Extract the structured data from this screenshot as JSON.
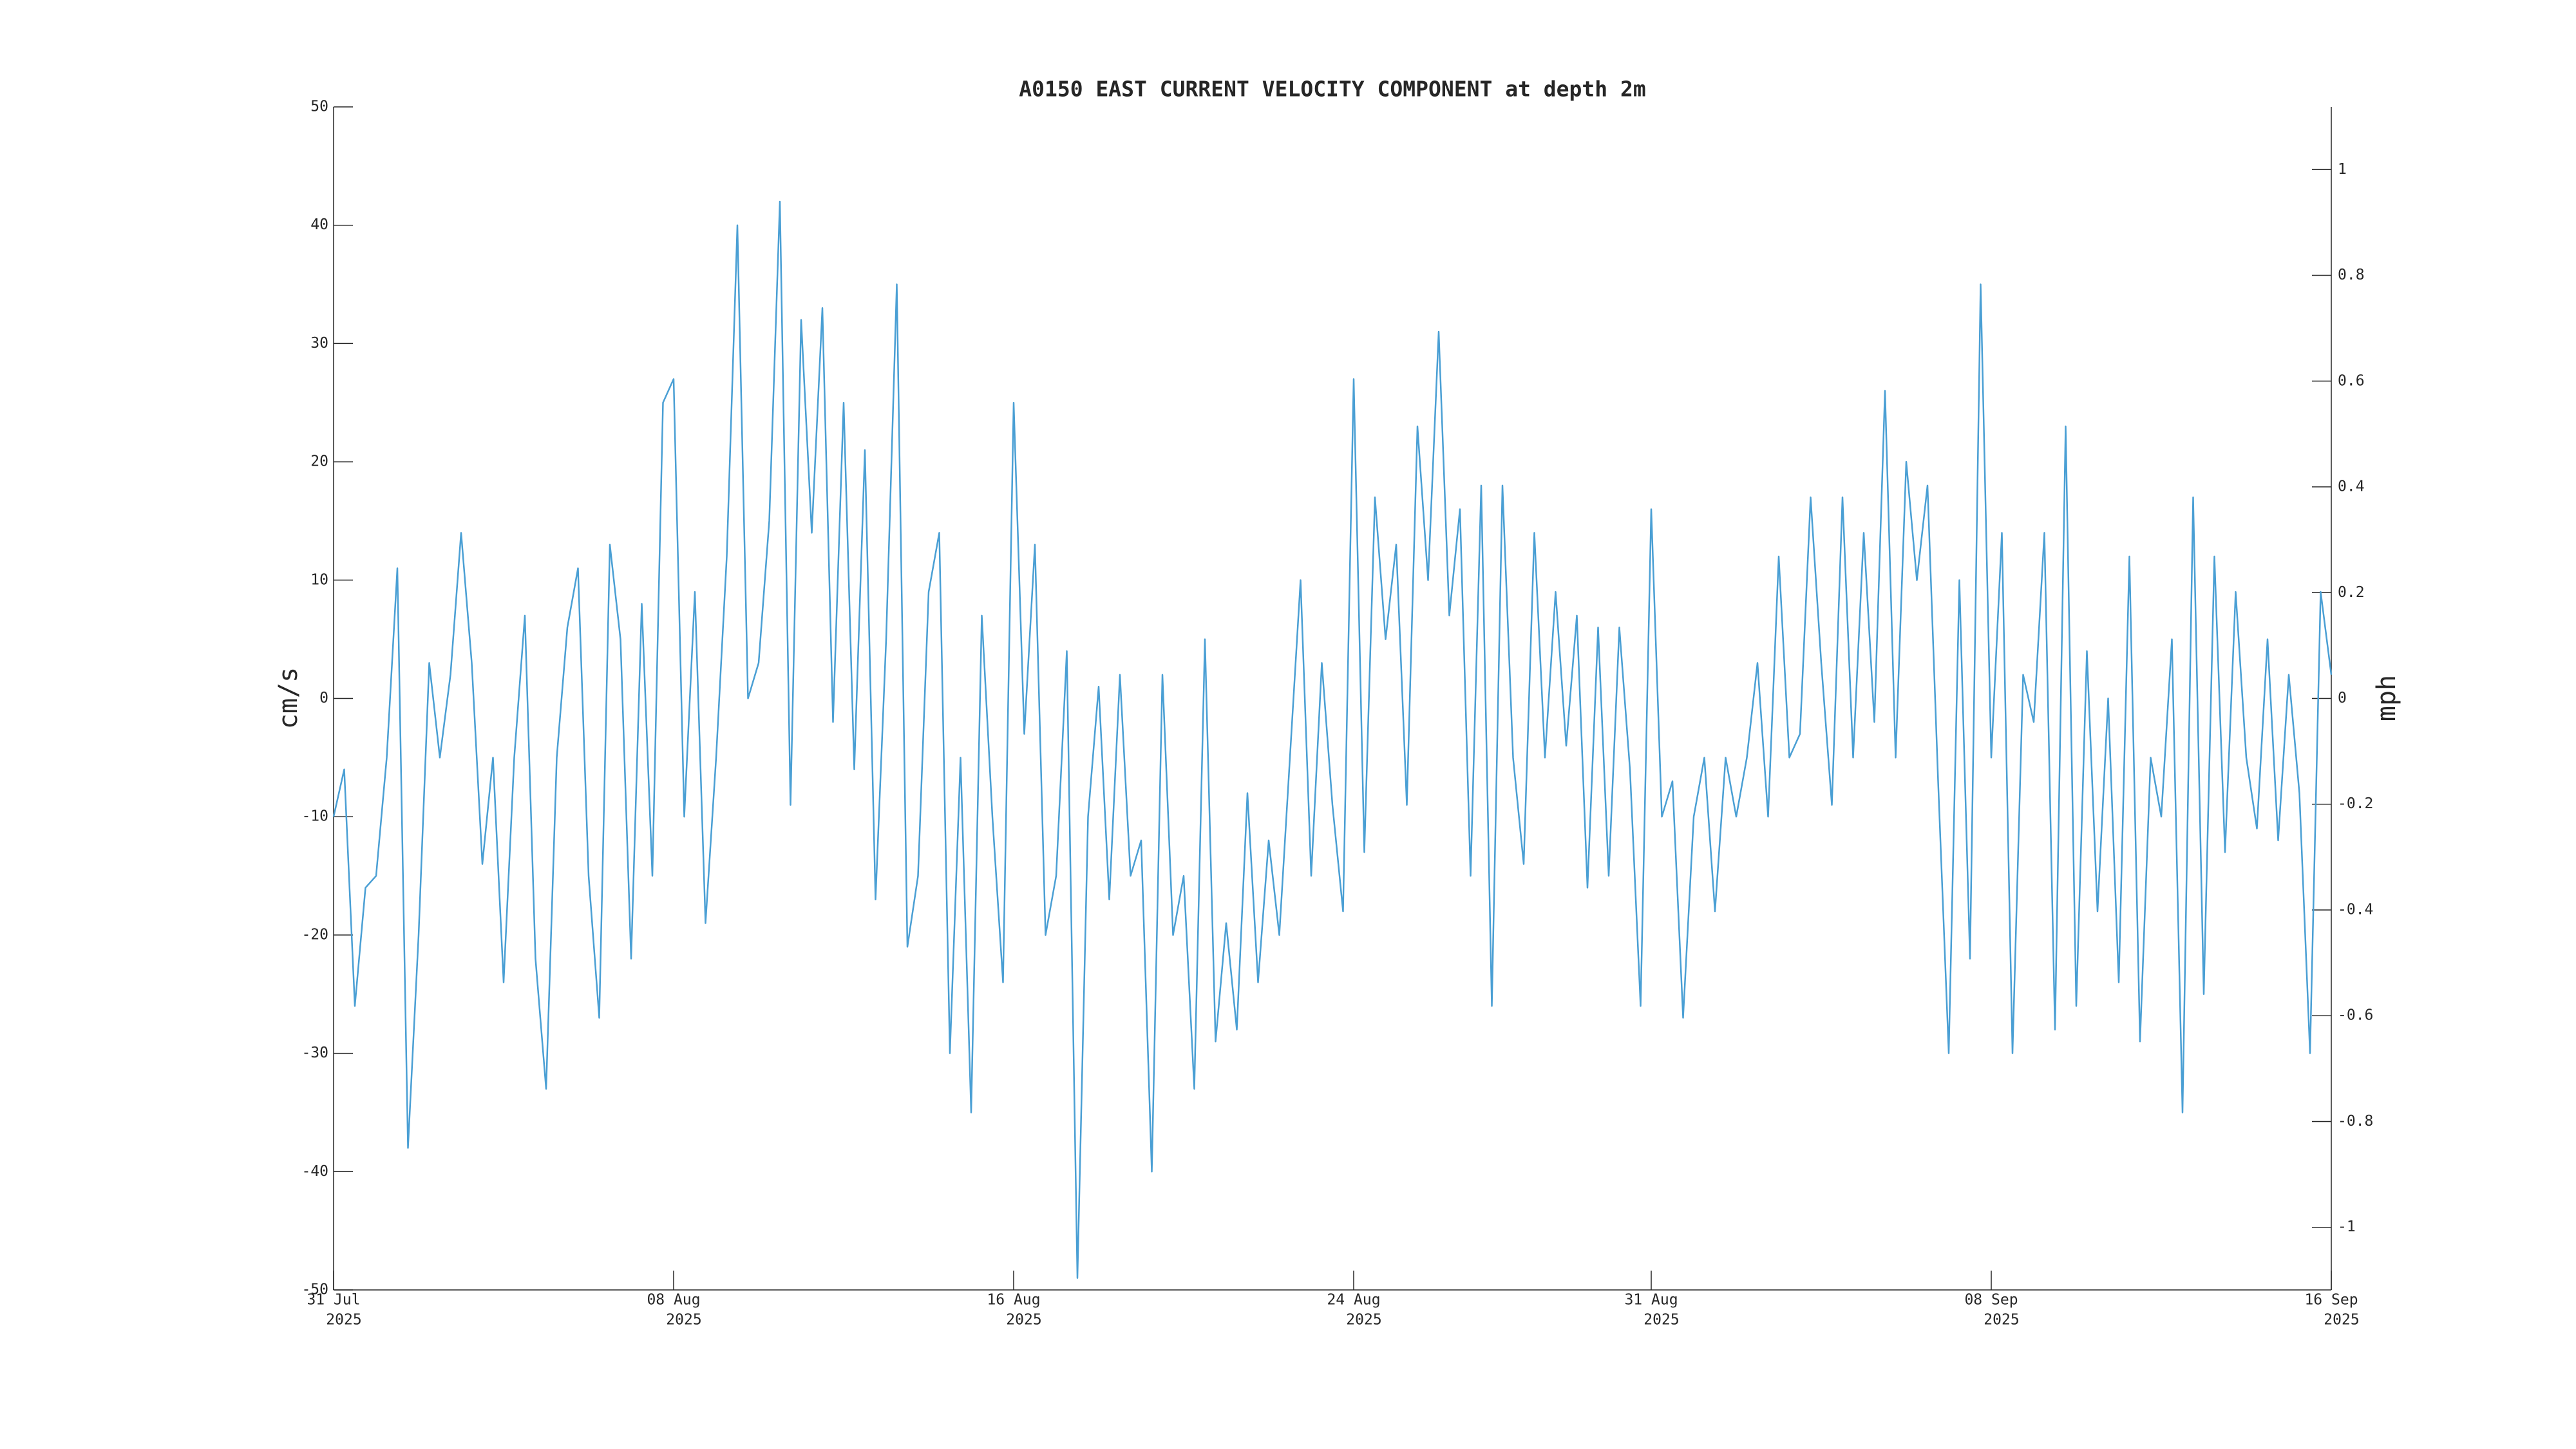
{
  "chart_data": {
    "type": "line",
    "title": "A0150 EAST CURRENT VELOCITY COMPONENT at depth 2m",
    "ylabel": "cm/s",
    "y2label": "mph",
    "color": "#4a9fd4",
    "xlim": [
      "2025-07-31",
      "2025-09-16"
    ],
    "xticks": [
      {
        "value": "2025-07-31",
        "label": [
          "31 Jul",
          "2025"
        ]
      },
      {
        "value": "2025-08-08",
        "label": [
          "08 Aug",
          "2025"
        ]
      },
      {
        "value": "2025-08-16",
        "label": [
          "16 Aug",
          "2025"
        ]
      },
      {
        "value": "2025-08-24",
        "label": [
          "24 Aug",
          "2025"
        ]
      },
      {
        "value": "2025-08-31",
        "label": [
          "31 Aug",
          "2025"
        ]
      },
      {
        "value": "2025-09-08",
        "label": [
          "08 Sep",
          "2025"
        ]
      },
      {
        "value": "2025-09-16",
        "label": [
          "16 Sep",
          "2025"
        ]
      }
    ],
    "ylim": [
      -50,
      50
    ],
    "yticks": [
      -50,
      -40,
      -30,
      -20,
      -10,
      0,
      10,
      20,
      30,
      40,
      50
    ],
    "y2lim": [
      -1.1185,
      1.1185
    ],
    "y2ticks": [
      -1,
      {
        "value": -0.8,
        "label": "-0.8"
      },
      {
        "value": -0.6,
        "label": "-0.6"
      },
      {
        "value": -0.4,
        "label": "-0.4"
      },
      {
        "value": -0.2,
        "label": "-0.2"
      },
      0,
      {
        "value": 0.2,
        "label": "0.2"
      },
      {
        "value": 0.4,
        "label": "0.4"
      },
      {
        "value": 0.6,
        "label": "0.6"
      },
      {
        "value": 0.8,
        "label": "0.8"
      },
      1
    ],
    "values": [
      -10,
      -6,
      -26,
      -16,
      -15,
      -5,
      11,
      -38,
      -20,
      3,
      -5,
      2,
      14,
      3,
      -14,
      -5,
      -24,
      -5,
      7,
      -22,
      -33,
      -5,
      6,
      11,
      -15,
      -27,
      13,
      5,
      -22,
      8,
      -15,
      25,
      27,
      -10,
      9,
      -19,
      -5,
      12,
      40,
      0,
      3,
      15,
      42,
      -9,
      32,
      14,
      33,
      -2,
      25,
      -6,
      21,
      -17,
      5,
      35,
      -21,
      -15,
      9,
      14,
      -30,
      -5,
      -35,
      7,
      -10,
      -24,
      25,
      -3,
      13,
      -20,
      -15,
      4,
      -49,
      -10,
      1,
      -17,
      2,
      -15,
      -12,
      -40,
      2,
      -20,
      -15,
      -33,
      5,
      -29,
      -19,
      -28,
      -8,
      -24,
      -12,
      -20,
      -5,
      10,
      -15,
      3,
      -9,
      -18,
      27,
      -13,
      17,
      5,
      13,
      -9,
      23,
      10,
      31,
      7,
      16,
      -15,
      18,
      -26,
      18,
      -5,
      -14,
      14,
      -5,
      9,
      -4,
      7,
      -16,
      6,
      -15,
      6,
      -6,
      -26,
      16,
      -10,
      -7,
      -27,
      -10,
      -5,
      -18,
      -5,
      -10,
      -5,
      3,
      -10,
      12,
      -5,
      -3,
      17,
      3,
      -9,
      17,
      -5,
      14,
      -2,
      26,
      -5,
      20,
      10,
      18,
      -7,
      -30,
      10,
      -22,
      35,
      -5,
      14,
      -30,
      2,
      -2,
      14,
      -28,
      23,
      -26,
      4,
      -18,
      0,
      -24,
      12,
      -29,
      -5,
      -10,
      5,
      -35,
      17,
      -25,
      12,
      -13,
      9,
      -5,
      -11,
      5,
      -12,
      2,
      -8,
      -30,
      9,
      2
    ]
  }
}
